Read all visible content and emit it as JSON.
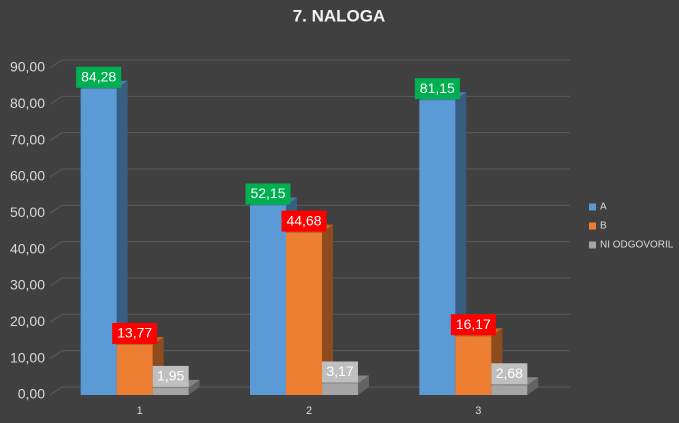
{
  "chart_data": {
    "type": "bar3d",
    "title": "7. NALOGA",
    "categories": [
      "1",
      "2",
      "3"
    ],
    "series": [
      {
        "name": "A",
        "color": "#5b9bd5",
        "label_color": "#00b050",
        "values": [
          84.28,
          52.15,
          81.15
        ],
        "value_labels": [
          "84,28",
          "52,15",
          "81,15"
        ]
      },
      {
        "name": "B",
        "color": "#ed7d31",
        "label_color": "#ff0000",
        "values": [
          13.77,
          44.68,
          16.17
        ],
        "value_labels": [
          "13,77",
          "44,68",
          "16,17"
        ]
      },
      {
        "name": "NI ODGOVORIL",
        "color": "#a5a5a5",
        "label_color": "#bfbfbf",
        "values": [
          1.95,
          3.17,
          2.68
        ],
        "value_labels": [
          "1,95",
          "3,17",
          "2,68"
        ]
      }
    ],
    "ylim": [
      0,
      90
    ],
    "yticks": [
      {
        "value": 0,
        "label": "0,00"
      },
      {
        "value": 10,
        "label": "10,00"
      },
      {
        "value": 20,
        "label": "20,00"
      },
      {
        "value": 30,
        "label": "30,00"
      },
      {
        "value": 40,
        "label": "40,00"
      },
      {
        "value": 50,
        "label": "50,00"
      },
      {
        "value": 60,
        "label": "60,00"
      },
      {
        "value": 70,
        "label": "70,00"
      },
      {
        "value": 80,
        "label": "80,00"
      },
      {
        "value": 90,
        "label": "90,00"
      }
    ],
    "grid": true,
    "legend": "right"
  }
}
